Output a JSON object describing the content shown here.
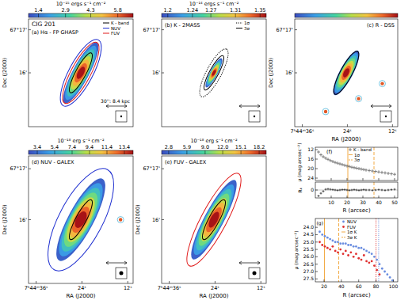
{
  "chart_data": [
    {
      "type": "image",
      "title": "(a) Hα - FP GHASP",
      "annotations": [
        "CIG 201",
        "30'': 8.4 kpc"
      ],
      "colorbar": {
        "label": "10⁻¹⁵ ergs s⁻¹ cm⁻²",
        "range": [
          0.85,
          6.65
        ],
        "ticks": [
          1.4,
          2.9,
          4.3,
          5.8
        ]
      },
      "ylim": [
        14.75,
        17.25
      ],
      "yticks": [
        {
          "value": 17,
          "label": "67°17'"
        },
        {
          "value": 16,
          "label": "16'"
        }
      ],
      "ylabel": "Dec (J2000)",
      "tick_labels": "y",
      "series": [
        {
          "name": "K - band",
          "color": "#000000",
          "line_style": "solid"
        },
        {
          "name": "NUV",
          "color": "#1f2fd0",
          "line_style": "solid"
        },
        {
          "name": "FUV",
          "color": "#e01a1a",
          "line_style": "solid"
        }
      ],
      "legend": "upper right"
    },
    {
      "type": "image",
      "title": "(b) K - 2MASS",
      "colorbar": {
        "label": "10⁻¹⁴ ergs s⁻¹ cm⁻²",
        "range": [
          1.19,
          1.36
        ],
        "ticks": [
          1.2,
          1.24,
          1.27,
          1.31,
          1.35
        ]
      },
      "ylim": [
        14.75,
        17.25
      ],
      "yticks": [
        {
          "value": 17,
          "label": "67°17'"
        },
        {
          "value": 16,
          "label": "16'"
        }
      ],
      "tick_labels": "y",
      "series": [
        {
          "name": "1σ",
          "color": "#000000",
          "line_style": "dotted"
        },
        {
          "name": "3σ",
          "color": "#000000",
          "line_style": "solid"
        }
      ],
      "legend": "upper right"
    },
    {
      "type": "image",
      "title": "(c) R - DSS",
      "xlim": [
        38,
        10.6
      ],
      "xticks": [
        {
          "value": 36,
          "label": "7ʰ44ᵐ36ˢ"
        },
        {
          "value": 24,
          "label": "24ˢ"
        },
        {
          "value": 12,
          "label": "12ˢ"
        }
      ],
      "xlabel": "RA (J2000)",
      "ylim": [
        14.75,
        17.25
      ],
      "yticks": [
        {
          "value": 17,
          "label": "67°17'"
        },
        {
          "value": 16,
          "label": "16'"
        }
      ],
      "ylabel": "Dec (J2000)"
    },
    {
      "type": "image",
      "title": "(d) NUV - GALEX",
      "colorbar": {
        "label": "10⁻¹⁸ erg s⁻¹ cm⁻²",
        "range": [
          2.4,
          14.4
        ],
        "ticks": [
          3.4,
          5.4,
          7.4,
          9.4,
          11.4,
          13.4
        ]
      },
      "xlim": [
        38,
        10.6
      ],
      "xticks": [
        {
          "value": 36,
          "label": "7ʰ44ᵐ36ˢ"
        },
        {
          "value": 24,
          "label": "24ˢ"
        },
        {
          "value": 12,
          "label": "12ˢ"
        }
      ],
      "xlabel": "RA (J2000)",
      "ylim": [
        14.75,
        17.25
      ],
      "yticks": [
        {
          "value": 17,
          "label": "67°17'"
        },
        {
          "value": 16,
          "label": "16'"
        }
      ],
      "ylabel": "Dec (J2000)"
    },
    {
      "type": "image",
      "title": "(e) FUV - GALEX",
      "colorbar": {
        "label": "10⁻¹⁸ erg s⁻¹ cm⁻²",
        "range": [
          1.6,
          19.4
        ],
        "ticks": [
          2.8,
          5.9,
          {
            "value": 9,
            "label": "9.0"
          },
          {
            "value": 12,
            "label": "12.0"
          },
          15.1,
          18.2
        ]
      },
      "xlim": [
        38,
        10.6
      ],
      "xticks": [
        {
          "value": 36,
          "label": "7ʰ44ᵐ36ˢ"
        },
        {
          "value": 24,
          "label": "24ˢ"
        },
        {
          "value": 12,
          "label": "12ˢ"
        }
      ],
      "xlabel": "RA (J2000)",
      "ylim": [
        14.75,
        17.25
      ],
      "yticks": [
        {
          "value": 17,
          "label": "67°17'"
        },
        {
          "value": 16,
          "label": "16'"
        }
      ],
      "ylabel": "Dec (J2000)"
    },
    {
      "type": "scatter",
      "title": "(f)",
      "x": [
        2,
        3.5,
        5,
        6.5,
        8,
        9.5,
        11,
        12.5,
        14,
        15.5,
        17,
        18.5,
        20,
        21.5,
        23,
        24.5,
        26,
        27.5,
        29,
        30.5,
        32,
        34,
        36,
        38,
        40,
        42,
        44,
        46,
        48,
        50
      ],
      "series": [
        {
          "name": "K - band",
          "color": "#555555",
          "marker": "plus",
          "values": [
            13.0,
            14.2,
            15.0,
            15.6,
            16.1,
            16.6,
            17.0,
            17.4,
            17.7,
            18.0,
            18.3,
            18.6,
            18.9,
            19.1,
            19.4,
            19.6,
            19.8,
            20.0,
            20.2,
            20.4,
            20.6,
            20.8,
            21.0,
            21.2,
            21.4,
            21.6,
            21.8,
            22.0,
            22.2,
            22.4
          ]
        }
      ],
      "residuals": [
        -0.9,
        -0.5,
        -0.2,
        0.1,
        0.15,
        0.1,
        0.05,
        0,
        -0.05,
        0,
        0.05,
        0.05,
        0,
        -0.05,
        0,
        0.05,
        0,
        -0.05,
        0,
        0.05,
        0,
        0,
        -0.05,
        0,
        0.05,
        0,
        -0.05,
        0,
        0.05,
        0.1
      ],
      "xlim": [
        0,
        52
      ],
      "xticks": [
        10,
        20,
        30,
        40,
        50
      ],
      "ylim": [
        25,
        11
      ],
      "yticks": [
        12,
        16,
        20,
        24
      ],
      "residual_ylim": [
        -1.2,
        1.2
      ],
      "residual_yticks": [
        0
      ],
      "xlabel": "R (arcsec)",
      "ylabel": "μ (mag arcsec⁻²)",
      "residual_ylabel": "Rₖ",
      "vlines": [
        {
          "name": "1σ",
          "value": 20.5,
          "color": "#f0a030",
          "line_style": "solid"
        },
        {
          "name": "3σ",
          "value": 37,
          "color": "#f0a030",
          "line_style": "dashed"
        }
      ],
      "legend": "upper center"
    },
    {
      "type": "scatter",
      "title": "(g)",
      "series": [
        {
          "name": "NUV",
          "color": "#6a8de0",
          "marker": "circle",
          "x": [
            15,
            18,
            21,
            24,
            27,
            30,
            33,
            36,
            39,
            42,
            45,
            48,
            51,
            54,
            57,
            60,
            63,
            66,
            69,
            72,
            75,
            78,
            81,
            84,
            87,
            90,
            93,
            96,
            99
          ],
          "values": [
            24.3,
            24.5,
            24.6,
            24.7,
            24.8,
            24.9,
            25.0,
            25.0,
            25.1,
            25.1,
            25.1,
            25.2,
            25.2,
            25.3,
            25.3,
            25.4,
            25.4,
            25.5,
            25.6,
            25.7,
            25.8,
            26.0,
            26.2,
            26.5,
            26.8,
            27.0,
            27.2,
            27.4,
            27.6
          ]
        },
        {
          "name": "FUV",
          "color": "#e03030",
          "marker": "circle",
          "x": [
            15,
            18,
            21,
            24,
            27,
            30,
            33,
            36,
            39,
            42,
            45,
            48,
            51,
            54,
            57,
            60,
            63,
            66,
            69,
            72,
            75,
            78,
            81,
            84
          ],
          "values": [
            25.0,
            25.2,
            25.3,
            25.4,
            25.5,
            25.3,
            25.6,
            25.7,
            25.5,
            25.8,
            25.6,
            25.9,
            25.7,
            26.0,
            25.8,
            26.1,
            26.2,
            25.9,
            26.3,
            26.4,
            26.3,
            26.6,
            26.9,
            27.2
          ]
        }
      ],
      "xlim": [
        10,
        105
      ],
      "xticks": [
        20,
        40,
        60,
        80,
        100
      ],
      "ylim": [
        27.7,
        23.4
      ],
      "yticks": [
        {
          "value": 24,
          "label": "24.0"
        },
        24.5,
        {
          "value": 25,
          "label": "25.0"
        },
        25.5,
        {
          "value": 26,
          "label": "26.0"
        },
        26.5,
        {
          "value": 27,
          "label": "27.0"
        },
        27.5
      ],
      "xlabel": "R (arcsec)",
      "ylabel": "μ (mag arcsec⁻²)",
      "vlines": [
        {
          "name": "1σ K",
          "value": 20.5,
          "color": "#f0a030",
          "line_style": "solid"
        },
        {
          "name": "3σ K",
          "value": 37,
          "color": "#f0a030",
          "line_style": "dashed"
        },
        {
          "value": 83,
          "color": "#6a8de0",
          "line_style": "dotted"
        },
        {
          "value": 80,
          "color": "#e03030",
          "line_style": "dotted"
        }
      ],
      "legend": "upper center"
    }
  ]
}
